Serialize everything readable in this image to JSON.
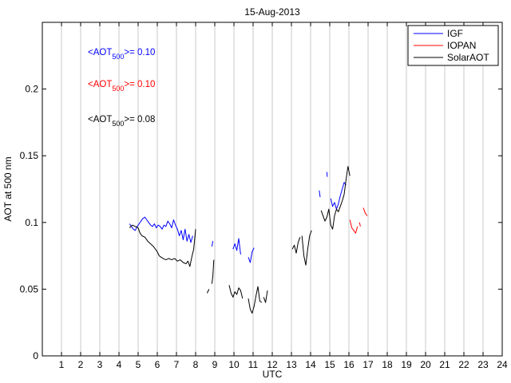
{
  "chart_data": {
    "type": "line",
    "title": "15-Aug-2013",
    "xlabel": "UTC",
    "ylabel": "AOT at 500 nm",
    "xlim": [
      0,
      24
    ],
    "ylim": [
      0,
      0.25
    ],
    "xticks": [
      1,
      2,
      3,
      4,
      5,
      6,
      7,
      8,
      9,
      10,
      11,
      12,
      13,
      14,
      15,
      16,
      17,
      18,
      19,
      20,
      21,
      22,
      23,
      24
    ],
    "yticks": [
      0,
      0.05,
      0.1,
      0.15,
      0.2
    ],
    "ytick_labels": [
      "0",
      "0.05",
      "0.1",
      "0.15",
      "0.2"
    ],
    "grid": "vertical",
    "legend_position": "top-right",
    "annotations": [
      {
        "prefix": "<AOT",
        "sub": "500",
        "suffix": ">= 0.10",
        "color": "#0000ff"
      },
      {
        "prefix": "<AOT",
        "sub": "500",
        "suffix": ">= 0.10",
        "color": "#ff0000"
      },
      {
        "prefix": "<AOT",
        "sub": "500",
        "suffix": ">= 0.08",
        "color": "#000000"
      }
    ],
    "series": [
      {
        "name": "IGF",
        "color": "#0000ff",
        "segments": [
          [
            [
              4.55,
              0.099
            ],
            [
              4.65,
              0.097
            ],
            [
              4.75,
              0.095
            ],
            [
              4.85,
              0.094
            ],
            [
              4.95,
              0.097
            ],
            [
              5.05,
              0.099
            ],
            [
              5.15,
              0.101
            ],
            [
              5.25,
              0.103
            ],
            [
              5.35,
              0.104
            ],
            [
              5.45,
              0.102
            ],
            [
              5.55,
              0.1
            ],
            [
              5.65,
              0.098
            ],
            [
              5.75,
              0.097
            ],
            [
              5.85,
              0.099
            ],
            [
              5.95,
              0.096
            ],
            [
              6.05,
              0.098
            ],
            [
              6.15,
              0.097
            ],
            [
              6.25,
              0.095
            ],
            [
              6.35,
              0.098
            ],
            [
              6.45,
              0.097
            ],
            [
              6.55,
              0.101
            ],
            [
              6.65,
              0.099
            ],
            [
              6.75,
              0.096
            ],
            [
              6.85,
              0.102
            ],
            [
              6.95,
              0.098
            ],
            [
              7.05,
              0.095
            ],
            [
              7.15,
              0.09
            ],
            [
              7.25,
              0.094
            ],
            [
              7.35,
              0.087
            ],
            [
              7.45,
              0.095
            ],
            [
              7.55,
              0.086
            ],
            [
              7.65,
              0.091
            ],
            [
              7.75,
              0.085
            ],
            [
              7.85,
              0.09
            ]
          ],
          [
            [
              8.85,
              0.082
            ],
            [
              8.9,
              0.086
            ]
          ],
          [
            [
              9.95,
              0.08
            ],
            [
              10.05,
              0.084
            ],
            [
              10.15,
              0.079
            ],
            [
              10.25,
              0.088
            ],
            [
              10.35,
              0.076
            ]
          ],
          [
            [
              10.75,
              0.074
            ],
            [
              10.85,
              0.07
            ],
            [
              10.95,
              0.078
            ],
            [
              11.05,
              0.081
            ]
          ],
          [
            [
              14.45,
              0.124
            ],
            [
              14.5,
              0.119
            ]
          ],
          [
            [
              14.85,
              0.136
            ]
          ],
          [
            [
              15.05,
              0.118
            ],
            [
              15.15,
              0.112
            ],
            [
              15.25,
              0.115
            ],
            [
              15.35,
              0.11
            ],
            [
              15.45,
              0.114
            ],
            [
              15.55,
              0.12
            ],
            [
              15.65,
              0.125
            ],
            [
              15.75,
              0.13
            ],
            [
              15.85,
              0.128
            ]
          ]
        ]
      },
      {
        "name": "IOPAN",
        "color": "#ff0000",
        "segments": [
          [
            [
              16.05,
              0.102
            ],
            [
              16.15,
              0.096
            ],
            [
              16.25,
              0.094
            ],
            [
              16.35,
              0.092
            ],
            [
              16.45,
              0.097
            ]
          ],
          [
            [
              16.55,
              0.1
            ],
            [
              16.6,
              0.097
            ]
          ],
          [
            [
              16.75,
              0.111
            ],
            [
              16.85,
              0.107
            ],
            [
              16.95,
              0.105
            ]
          ]
        ]
      },
      {
        "name": "SolarAOT",
        "color": "#000000",
        "segments": [
          [
            [
              4.55,
              0.096
            ],
            [
              4.7,
              0.098
            ],
            [
              4.85,
              0.097
            ],
            [
              5.0,
              0.096
            ],
            [
              5.1,
              0.092
            ],
            [
              5.2,
              0.09
            ],
            [
              5.35,
              0.089
            ],
            [
              5.5,
              0.086
            ],
            [
              5.65,
              0.084
            ],
            [
              5.8,
              0.082
            ],
            [
              5.9,
              0.08
            ],
            [
              6.0,
              0.078
            ],
            [
              6.1,
              0.075
            ],
            [
              6.2,
              0.074
            ],
            [
              6.3,
              0.073
            ],
            [
              6.45,
              0.072
            ],
            [
              6.6,
              0.073
            ],
            [
              6.75,
              0.072
            ],
            [
              6.9,
              0.073
            ],
            [
              7.05,
              0.071
            ],
            [
              7.2,
              0.072
            ],
            [
              7.35,
              0.07
            ],
            [
              7.5,
              0.069
            ],
            [
              7.6,
              0.071
            ],
            [
              7.7,
              0.067
            ],
            [
              7.8,
              0.074
            ],
            [
              7.9,
              0.08
            ],
            [
              8.0,
              0.095
            ]
          ],
          [
            [
              8.6,
              0.047
            ],
            [
              8.7,
              0.05
            ]
          ],
          [
            [
              8.85,
              0.054
            ],
            [
              8.9,
              0.06
            ],
            [
              8.95,
              0.072
            ]
          ],
          [
            [
              9.75,
              0.053
            ],
            [
              9.85,
              0.047
            ],
            [
              9.95,
              0.044
            ],
            [
              10.05,
              0.048
            ],
            [
              10.15,
              0.046
            ],
            [
              10.25,
              0.051
            ],
            [
              10.35,
              0.049
            ],
            [
              10.45,
              0.043
            ]
          ],
          [
            [
              10.75,
              0.043
            ],
            [
              10.85,
              0.035
            ],
            [
              10.95,
              0.032
            ],
            [
              11.05,
              0.037
            ],
            [
              11.15,
              0.045
            ],
            [
              11.25,
              0.052
            ],
            [
              11.35,
              0.041
            ],
            [
              11.45,
              0.04
            ]
          ],
          [
            [
              11.55,
              0.044
            ],
            [
              11.65,
              0.04
            ],
            [
              11.75,
              0.049
            ]
          ],
          [
            [
              13.05,
              0.08
            ],
            [
              13.15,
              0.083
            ],
            [
              13.25,
              0.077
            ],
            [
              13.35,
              0.085
            ],
            [
              13.45,
              0.089
            ]
          ],
          [
            [
              13.55,
              0.09
            ],
            [
              13.65,
              0.075
            ],
            [
              13.75,
              0.068
            ],
            [
              13.85,
              0.08
            ],
            [
              13.95,
              0.09
            ],
            [
              14.05,
              0.094
            ]
          ],
          [
            [
              14.55,
              0.109
            ],
            [
              14.65,
              0.105
            ],
            [
              14.75,
              0.101
            ],
            [
              14.85,
              0.104
            ],
            [
              14.95,
              0.11
            ],
            [
              15.05,
              0.098
            ],
            [
              15.15,
              0.095
            ],
            [
              15.25,
              0.105
            ],
            [
              15.35,
              0.11
            ],
            [
              15.45,
              0.108
            ],
            [
              15.55,
              0.112
            ],
            [
              15.65,
              0.116
            ],
            [
              15.75,
              0.121
            ],
            [
              15.85,
              0.132
            ],
            [
              15.95,
              0.142
            ],
            [
              16.05,
              0.135
            ]
          ]
        ]
      }
    ]
  }
}
